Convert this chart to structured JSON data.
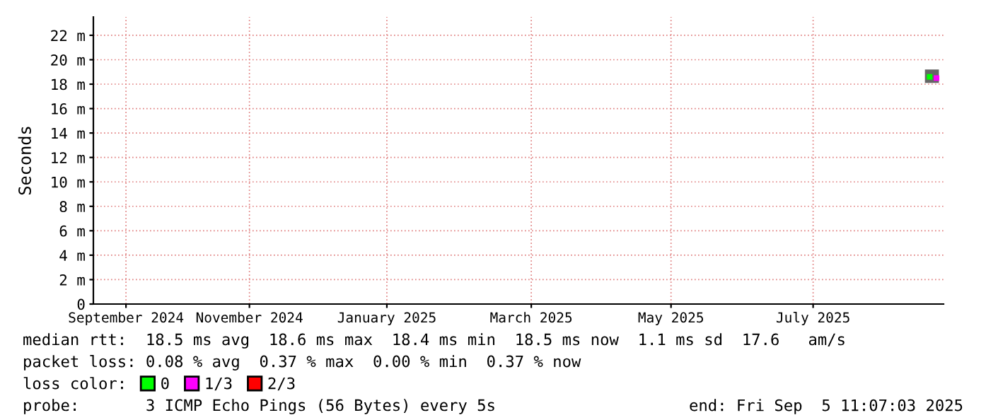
{
  "chart_data": {
    "type": "scatter",
    "ylabel": "Seconds",
    "xlim": [
      "2024-09-05",
      "2025-09-05"
    ],
    "xticks": [
      {
        "value": "2024-09-19",
        "label": "September 2024"
      },
      {
        "value": "2024-11-11",
        "label": "November 2024"
      },
      {
        "value": "2025-01-09",
        "label": "January 2025"
      },
      {
        "value": "2025-03-12",
        "label": "March 2025"
      },
      {
        "value": "2025-05-11",
        "label": "May 2025"
      },
      {
        "value": "2025-07-11",
        "label": "July 2025"
      }
    ],
    "ylim": [
      0,
      23.5
    ],
    "yticks": [
      0,
      {
        "value": 2,
        "label": "2 m"
      },
      {
        "value": 4,
        "label": "4 m"
      },
      {
        "value": 6,
        "label": "6 m"
      },
      {
        "value": 8,
        "label": "8 m"
      },
      {
        "value": 10,
        "label": "10 m"
      },
      {
        "value": 12,
        "label": "12 m"
      },
      {
        "value": 14,
        "label": "14 m"
      },
      {
        "value": 16,
        "label": "16 m"
      },
      {
        "value": 18,
        "label": "18 m"
      },
      {
        "value": 20,
        "label": "20 m"
      },
      {
        "value": 22,
        "label": "22 m"
      }
    ],
    "grid": true,
    "legend": "bottom",
    "legend_title": "loss color:",
    "marker": "square",
    "series": [
      {
        "type": "bar",
        "color": "#666666",
        "x": [
          "2025-08-31"
        ],
        "base": [
          18.1
        ],
        "values": [
          1.1
        ]
      },
      {
        "name": "0",
        "color": "#00ff00",
        "x": [
          "2025-08-30"
        ],
        "values": [
          18.6
        ]
      },
      {
        "name": "1/3",
        "color": "#ff00ff",
        "x": [
          "2025-09-02"
        ],
        "values": [
          18.5
        ]
      },
      {
        "name": "2/3",
        "color": "#ff0000"
      }
    ],
    "annotations": [
      "median rtt:  18.5 ms avg  18.6 ms max  18.4 ms min  18.5 ms now  1.1 ms sd  17.6   am/s",
      "packet loss: 0.08 % avg  0.37 % max  0.00 % min  0.37 % now",
      "probe:       3 ICMP Echo Pings (56 Bytes) every 5s",
      "end: Fri Sep  5 11:07:03 2025"
    ]
  }
}
